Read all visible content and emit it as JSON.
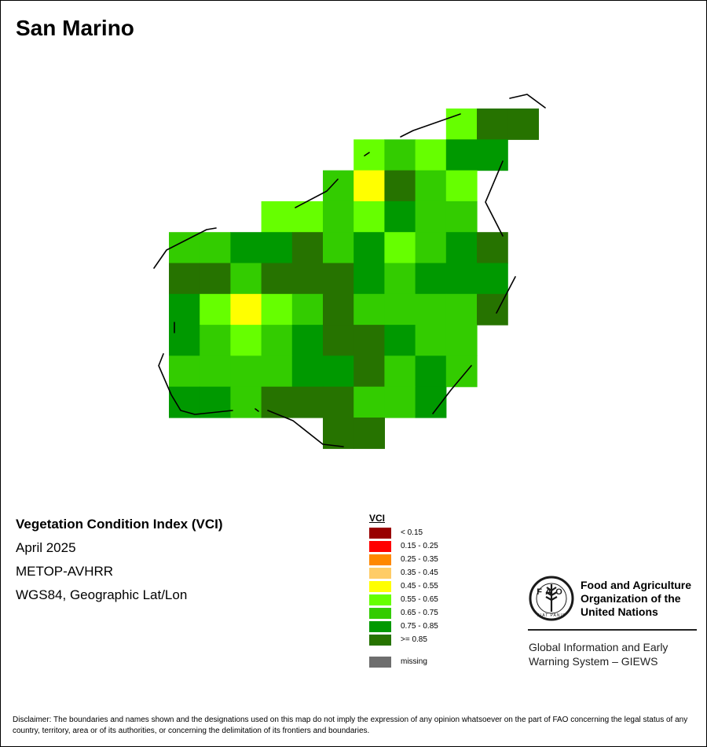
{
  "map": {
    "title": "San Marino",
    "grid_origin": {
      "col": 0,
      "row": 0
    },
    "colors": {
      "lt_0.15": "#990000",
      "0.15-0.25": "#ff0000",
      "0.25-0.35": "#ff8800",
      "0.35-0.45": "#ffcc66",
      "0.45-0.55": "#ffff00",
      "0.55-0.65": "#66ff00",
      "0.65-0.75": "#33cc00",
      "0.75-0.85": "#009900",
      "ge_0.85": "#267300",
      "missing": "#6e6e6e"
    },
    "cells": [
      {
        "c": 9,
        "r": 0,
        "v": "0.55-0.65"
      },
      {
        "c": 10,
        "r": 0,
        "v": "ge_0.85"
      },
      {
        "c": 11,
        "r": 0,
        "v": "ge_0.85"
      },
      {
        "c": 6,
        "r": 1,
        "v": "0.55-0.65"
      },
      {
        "c": 7,
        "r": 1,
        "v": "0.65-0.75"
      },
      {
        "c": 8,
        "r": 1,
        "v": "0.55-0.65"
      },
      {
        "c": 9,
        "r": 1,
        "v": "0.75-0.85"
      },
      {
        "c": 10,
        "r": 1,
        "v": "0.75-0.85"
      },
      {
        "c": 5,
        "r": 2,
        "v": "0.65-0.75"
      },
      {
        "c": 6,
        "r": 2,
        "v": "0.45-0.55"
      },
      {
        "c": 7,
        "r": 2,
        "v": "ge_0.85"
      },
      {
        "c": 8,
        "r": 2,
        "v": "0.65-0.75"
      },
      {
        "c": 9,
        "r": 2,
        "v": "0.55-0.65"
      },
      {
        "c": 3,
        "r": 3,
        "v": "0.55-0.65"
      },
      {
        "c": 4,
        "r": 3,
        "v": "0.55-0.65"
      },
      {
        "c": 5,
        "r": 3,
        "v": "0.65-0.75"
      },
      {
        "c": 6,
        "r": 3,
        "v": "0.55-0.65"
      },
      {
        "c": 7,
        "r": 3,
        "v": "0.75-0.85"
      },
      {
        "c": 8,
        "r": 3,
        "v": "0.65-0.75"
      },
      {
        "c": 9,
        "r": 3,
        "v": "0.65-0.75"
      },
      {
        "c": 0,
        "r": 4,
        "v": "0.65-0.75"
      },
      {
        "c": 1,
        "r": 4,
        "v": "0.65-0.75"
      },
      {
        "c": 2,
        "r": 4,
        "v": "0.75-0.85"
      },
      {
        "c": 3,
        "r": 4,
        "v": "0.75-0.85"
      },
      {
        "c": 4,
        "r": 4,
        "v": "ge_0.85"
      },
      {
        "c": 5,
        "r": 4,
        "v": "0.65-0.75"
      },
      {
        "c": 6,
        "r": 4,
        "v": "0.75-0.85"
      },
      {
        "c": 7,
        "r": 4,
        "v": "0.55-0.65"
      },
      {
        "c": 8,
        "r": 4,
        "v": "0.65-0.75"
      },
      {
        "c": 9,
        "r": 4,
        "v": "0.75-0.85"
      },
      {
        "c": 10,
        "r": 4,
        "v": "ge_0.85"
      },
      {
        "c": 0,
        "r": 5,
        "v": "ge_0.85"
      },
      {
        "c": 1,
        "r": 5,
        "v": "ge_0.85"
      },
      {
        "c": 2,
        "r": 5,
        "v": "0.65-0.75"
      },
      {
        "c": 3,
        "r": 5,
        "v": "ge_0.85"
      },
      {
        "c": 4,
        "r": 5,
        "v": "ge_0.85"
      },
      {
        "c": 5,
        "r": 5,
        "v": "ge_0.85"
      },
      {
        "c": 6,
        "r": 5,
        "v": "0.75-0.85"
      },
      {
        "c": 7,
        "r": 5,
        "v": "0.65-0.75"
      },
      {
        "c": 8,
        "r": 5,
        "v": "0.75-0.85"
      },
      {
        "c": 9,
        "r": 5,
        "v": "0.75-0.85"
      },
      {
        "c": 10,
        "r": 5,
        "v": "0.75-0.85"
      },
      {
        "c": 0,
        "r": 6,
        "v": "0.75-0.85"
      },
      {
        "c": 1,
        "r": 6,
        "v": "0.55-0.65"
      },
      {
        "c": 2,
        "r": 6,
        "v": "0.45-0.55"
      },
      {
        "c": 3,
        "r": 6,
        "v": "0.55-0.65"
      },
      {
        "c": 4,
        "r": 6,
        "v": "0.65-0.75"
      },
      {
        "c": 5,
        "r": 6,
        "v": "ge_0.85"
      },
      {
        "c": 6,
        "r": 6,
        "v": "0.65-0.75"
      },
      {
        "c": 7,
        "r": 6,
        "v": "0.65-0.75"
      },
      {
        "c": 8,
        "r": 6,
        "v": "0.65-0.75"
      },
      {
        "c": 9,
        "r": 6,
        "v": "0.65-0.75"
      },
      {
        "c": 10,
        "r": 6,
        "v": "ge_0.85"
      },
      {
        "c": 0,
        "r": 7,
        "v": "0.75-0.85"
      },
      {
        "c": 1,
        "r": 7,
        "v": "0.65-0.75"
      },
      {
        "c": 2,
        "r": 7,
        "v": "0.55-0.65"
      },
      {
        "c": 3,
        "r": 7,
        "v": "0.65-0.75"
      },
      {
        "c": 4,
        "r": 7,
        "v": "0.75-0.85"
      },
      {
        "c": 5,
        "r": 7,
        "v": "ge_0.85"
      },
      {
        "c": 6,
        "r": 7,
        "v": "ge_0.85"
      },
      {
        "c": 7,
        "r": 7,
        "v": "0.75-0.85"
      },
      {
        "c": 8,
        "r": 7,
        "v": "0.65-0.75"
      },
      {
        "c": 9,
        "r": 7,
        "v": "0.65-0.75"
      },
      {
        "c": 0,
        "r": 8,
        "v": "0.65-0.75"
      },
      {
        "c": 1,
        "r": 8,
        "v": "0.65-0.75"
      },
      {
        "c": 2,
        "r": 8,
        "v": "0.65-0.75"
      },
      {
        "c": 3,
        "r": 8,
        "v": "0.65-0.75"
      },
      {
        "c": 4,
        "r": 8,
        "v": "0.75-0.85"
      },
      {
        "c": 5,
        "r": 8,
        "v": "0.75-0.85"
      },
      {
        "c": 6,
        "r": 8,
        "v": "ge_0.85"
      },
      {
        "c": 7,
        "r": 8,
        "v": "0.65-0.75"
      },
      {
        "c": 8,
        "r": 8,
        "v": "0.75-0.85"
      },
      {
        "c": 9,
        "r": 8,
        "v": "0.65-0.75"
      },
      {
        "c": 0,
        "r": 9,
        "v": "0.75-0.85"
      },
      {
        "c": 1,
        "r": 9,
        "v": "0.75-0.85"
      },
      {
        "c": 2,
        "r": 9,
        "v": "0.65-0.75"
      },
      {
        "c": 3,
        "r": 9,
        "v": "ge_0.85"
      },
      {
        "c": 4,
        "r": 9,
        "v": "ge_0.85"
      },
      {
        "c": 5,
        "r": 9,
        "v": "ge_0.85"
      },
      {
        "c": 6,
        "r": 9,
        "v": "0.65-0.75"
      },
      {
        "c": 7,
        "r": 9,
        "v": "0.65-0.75"
      },
      {
        "c": 8,
        "r": 9,
        "v": "0.75-0.85"
      },
      {
        "c": 5,
        "r": 10,
        "v": "ge_0.85"
      },
      {
        "c": 6,
        "r": 10,
        "v": "ge_0.85"
      }
    ]
  },
  "info": {
    "title": "Vegetation Condition Index (VCI)",
    "date": "April 2025",
    "sensor": "METOP-AVHRR",
    "projection": "WGS84, Geographic Lat/Lon"
  },
  "legend": {
    "title": "VCI",
    "items": [
      {
        "label": "< 0.15",
        "color": "#990000"
      },
      {
        "label": "0.15 - 0.25",
        "color": "#ff0000"
      },
      {
        "label": "0.25 - 0.35",
        "color": "#ff8800"
      },
      {
        "label": "0.35 - 0.45",
        "color": "#ffcc66"
      },
      {
        "label": "0.45 - 0.55",
        "color": "#ffff00"
      },
      {
        "label": "0.55 - 0.65",
        "color": "#66ff00"
      },
      {
        "label": "0.65 - 0.75",
        "color": "#33cc00"
      },
      {
        "label": "0.75 - 0.85",
        "color": "#009900"
      },
      {
        "label": ">= 0.85",
        "color": "#267300"
      }
    ],
    "missing": {
      "label": "missing",
      "color": "#6e6e6e"
    }
  },
  "logo": {
    "icon": "fao-logo-icon",
    "emblem_letters": "FAO",
    "motto": "FIAT PANIS",
    "org_line1": "Food and Agriculture",
    "org_line2": "Organization of the",
    "org_line3": "United Nations",
    "giews_line1": "Global Information and Early",
    "giews_line2": "Warning System – GIEWS"
  },
  "disclaimer": "Disclaimer: The boundaries and names shown and the designations used on this map do not imply the expression of any opinion whatsoever on the part of FAO concerning the legal status of any country, territory, area or of its authorities, or concerning the delimitation of its frontiers and boundaries."
}
